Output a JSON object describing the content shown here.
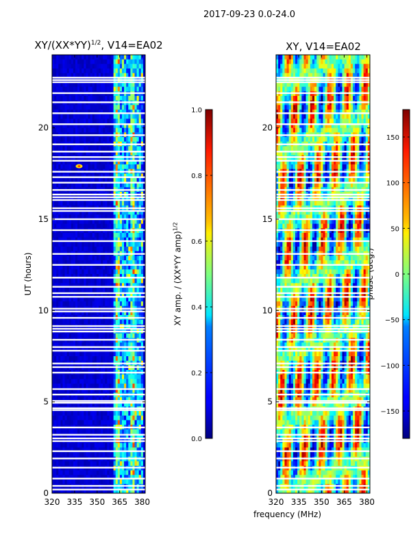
{
  "suptitle": "2017-09-23 0.0-24.0",
  "xlabel": "frequency (MHz)",
  "ylabel": "UT (hours)",
  "amp_title_main": "XY/(XX*YY)",
  "amp_title_exp": "1/2",
  "amp_title_tail": ", V14=EA02",
  "phase_title": "XY, V14=EA02",
  "cb1_label_main": "XY amp. / (XX*YY amp)",
  "cb1_label_exp": "1/2",
  "cb2_label": "phase (deg.)",
  "chart_data": [
    {
      "type": "heatmap",
      "title": "XY/(XX*YY)^1/2, V14=EA02",
      "xlabel": "",
      "ylabel": "UT (hours)",
      "xlim": [
        320,
        382
      ],
      "ylim": [
        0,
        24
      ],
      "xticks": [
        320,
        335,
        350,
        365,
        380
      ],
      "yticks": [
        0,
        5,
        10,
        15,
        20
      ],
      "colorbar": {
        "label": "XY amp. / (XX*YY amp)^1/2",
        "range": [
          0.0,
          1.0
        ],
        "ticks": [
          "0.0",
          "0.2",
          "0.4",
          "0.6",
          "0.8",
          "1.0"
        ]
      },
      "active_band_mhz": [
        361,
        380
      ],
      "bright_spot": {
        "freq_mhz": 338,
        "ut_hours": 17.9
      }
    },
    {
      "type": "heatmap",
      "title": "XY, V14=EA02",
      "xlabel": "frequency (MHz)",
      "ylabel": "",
      "xlim": [
        320,
        382
      ],
      "ylim": [
        0,
        24
      ],
      "xticks": [
        320,
        335,
        350,
        365,
        380
      ],
      "yticks": [
        0,
        5,
        10,
        15,
        20
      ],
      "colorbar": {
        "label": "phase (deg.)",
        "range": [
          -180,
          180
        ],
        "ticks": [
          "−150",
          "−100",
          "−50",
          "0",
          "50",
          "100",
          "150"
        ]
      }
    }
  ],
  "flagged_ut_hours": [
    22.5,
    22.62,
    22.75,
    21.9,
    21.4,
    20.8,
    20.2,
    19.6,
    19.1,
    18.7,
    18.4,
    18.2,
    17.6,
    17.3,
    17.0,
    16.6,
    16.35,
    16.2,
    16.05,
    15.6,
    15.45,
    15.0,
    14.4,
    13.8,
    13.1,
    12.5,
    11.8,
    11.3,
    10.95,
    10.75,
    10.1,
    9.95,
    9.6,
    9.15,
    9.0,
    8.85,
    8.4,
    8.0,
    7.8,
    7.1,
    6.9,
    6.6,
    5.7,
    5.4,
    5.05,
    4.95,
    4.65,
    4.55,
    3.6,
    3.2,
    3.0,
    2.85,
    2.3,
    1.9,
    1.4,
    0.8,
    0.4,
    0.2
  ]
}
